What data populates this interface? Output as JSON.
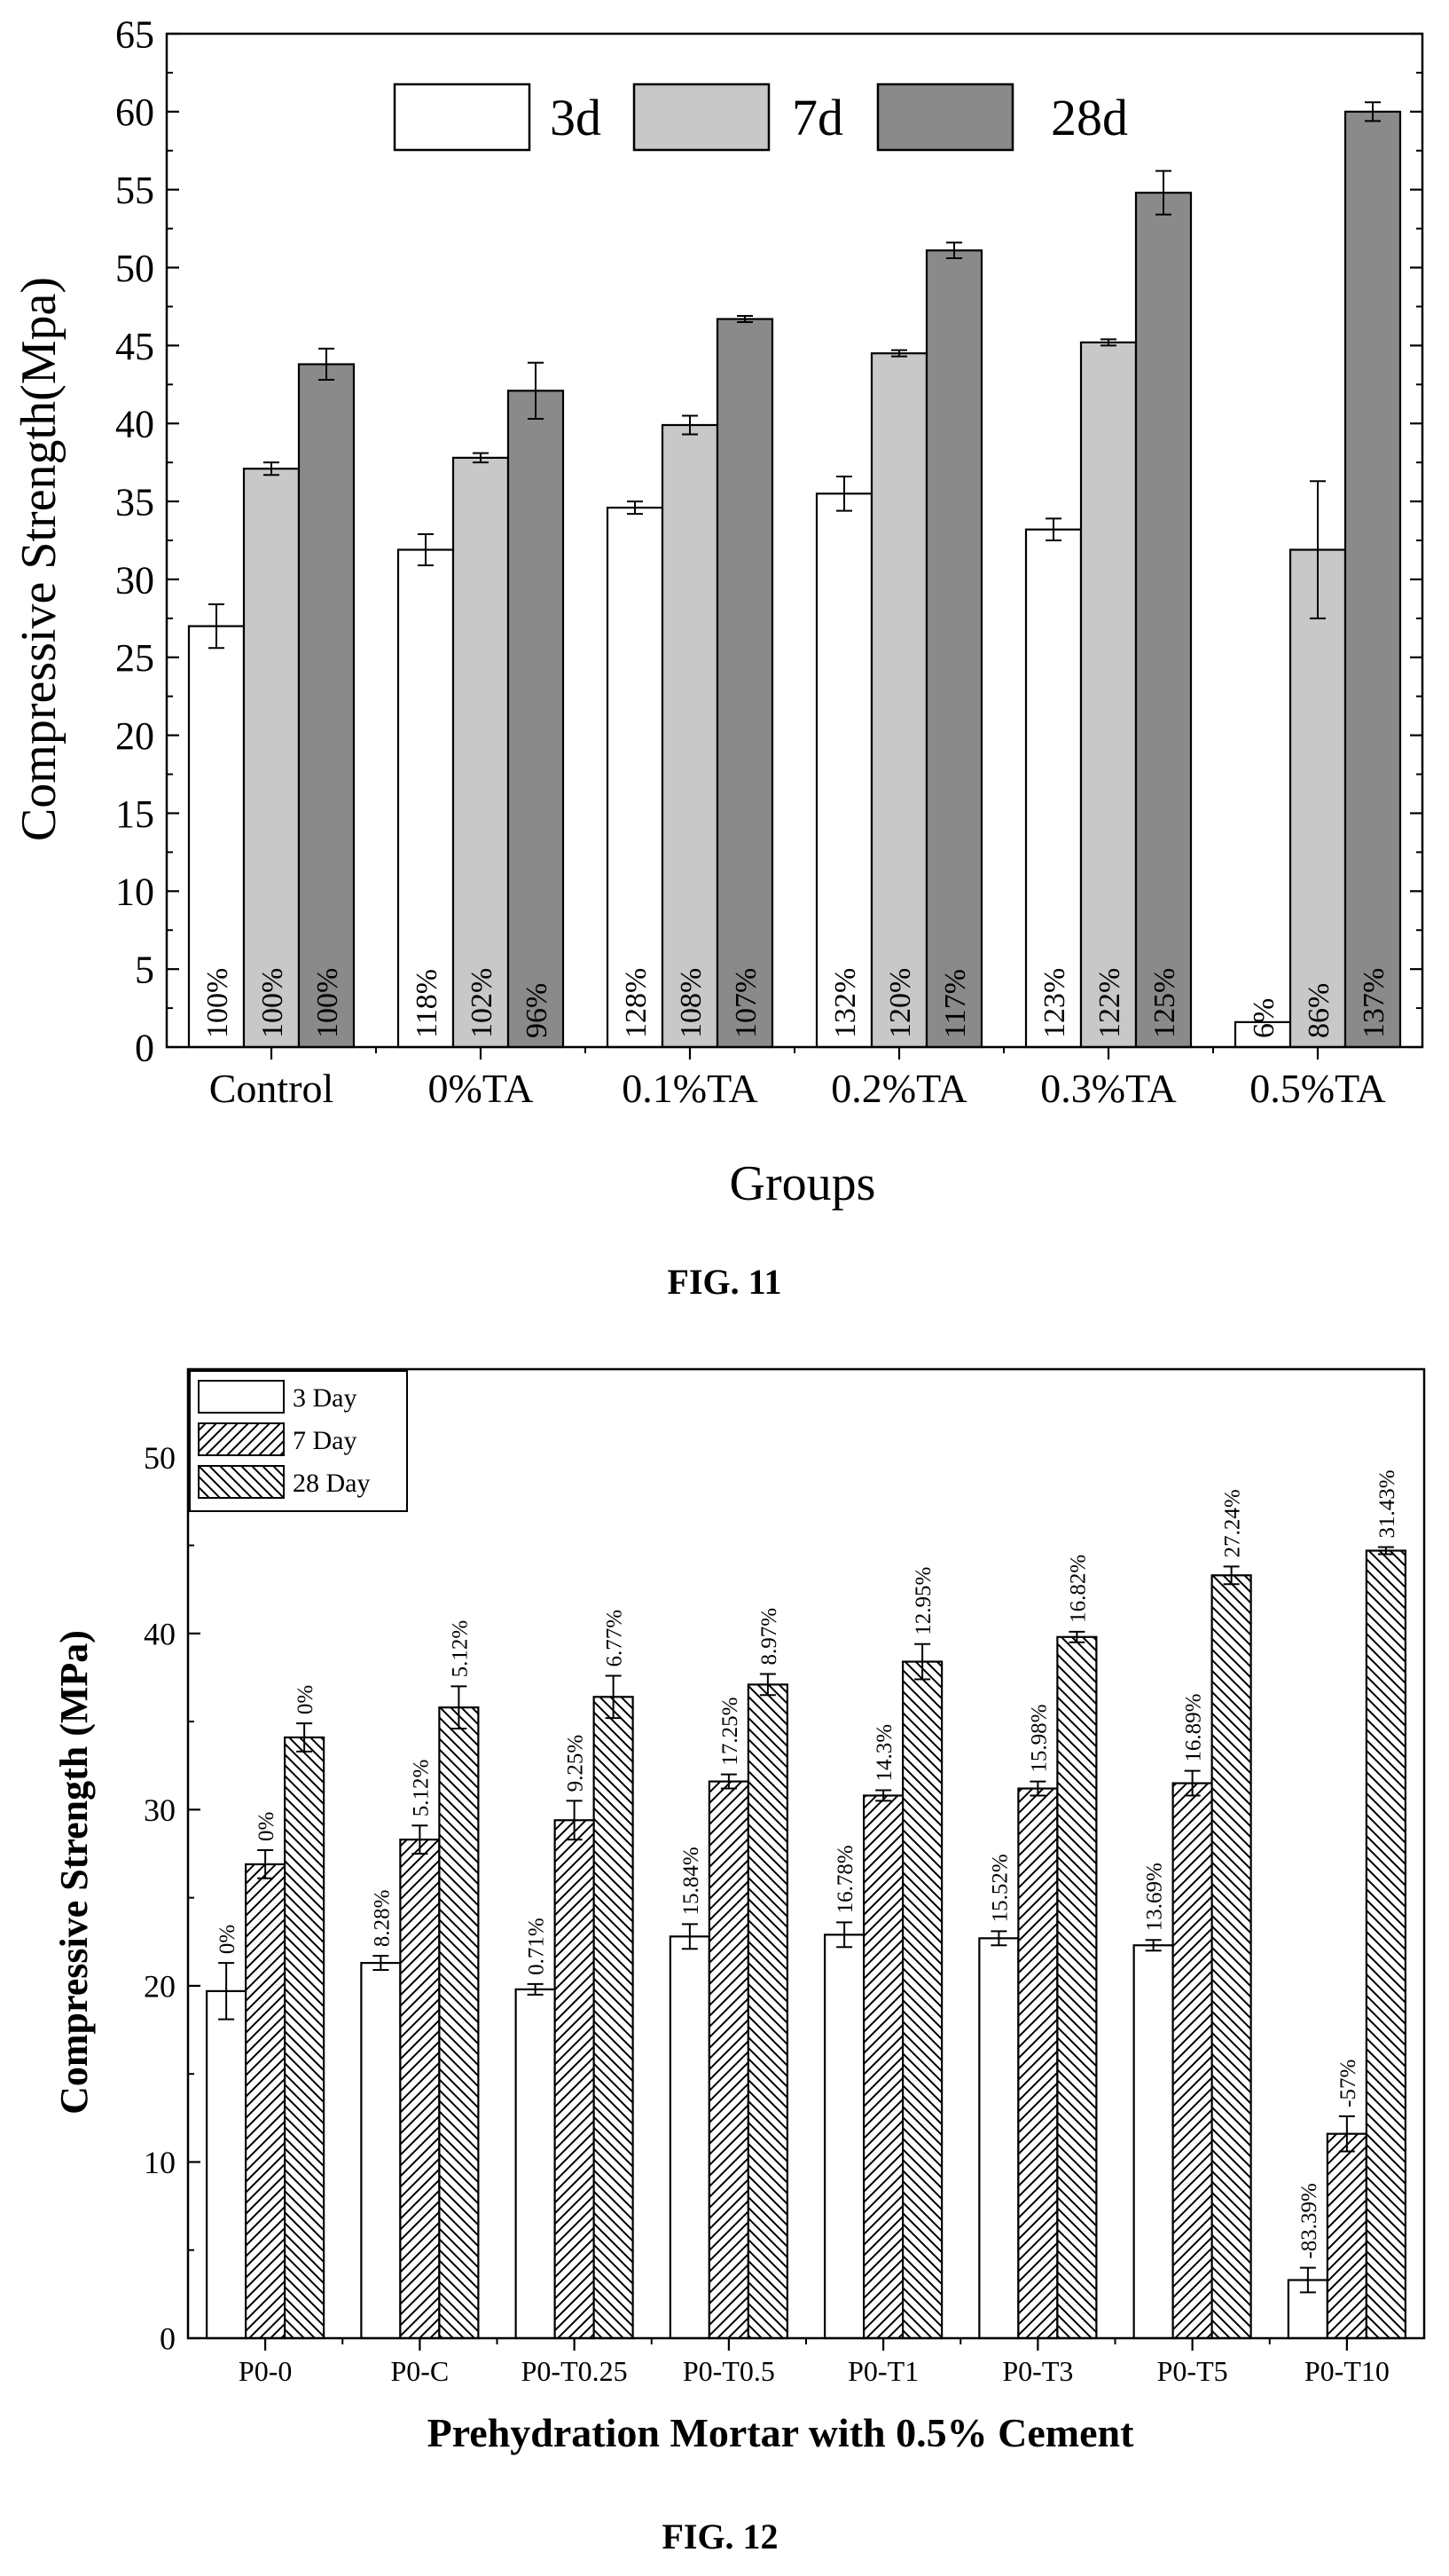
{
  "chart_data": [
    {
      "type": "bar",
      "figure_label": "FIG. 11",
      "xlabel": "Groups",
      "ylabel": "Compressive Strength(Mpa)",
      "ylim": [
        0,
        65
      ],
      "yticks": [
        0,
        5,
        10,
        15,
        20,
        25,
        30,
        35,
        40,
        45,
        50,
        55,
        60,
        65
      ],
      "grid": false,
      "legend": "top-center",
      "categories": [
        "Control",
        "0%TA",
        "0.1%TA",
        "0.2%TA",
        "0.3%TA",
        "0.5%TA"
      ],
      "series": [
        {
          "name": "3d",
          "color": "#ffffff",
          "values": [
            27.0,
            31.9,
            34.6,
            35.5,
            33.2,
            1.6
          ],
          "errors": [
            1.4,
            1.0,
            0.4,
            1.1,
            0.7,
            0.0
          ],
          "labels": [
            "100%",
            "118%",
            "128%",
            "132%",
            "123%",
            "6%"
          ]
        },
        {
          "name": "7d",
          "color": "#c8c8c8",
          "values": [
            37.1,
            37.8,
            39.9,
            44.5,
            45.2,
            31.9
          ],
          "errors": [
            0.4,
            0.3,
            0.6,
            0.2,
            0.2,
            4.4
          ],
          "labels": [
            "100%",
            "102%",
            "108%",
            "120%",
            "122%",
            "86%"
          ]
        },
        {
          "name": "28d",
          "color": "#8a8a8a",
          "values": [
            43.8,
            42.1,
            46.7,
            51.1,
            54.8,
            60.0
          ],
          "errors": [
            1.0,
            1.8,
            0.2,
            0.5,
            1.4,
            0.6
          ],
          "labels": [
            "100%",
            "96%",
            "107%",
            "117%",
            "125%",
            "137%"
          ]
        }
      ]
    },
    {
      "type": "bar",
      "figure_label": "FIG. 12",
      "xlabel": "Prehydration Mortar with 0.5% Cement",
      "ylabel": "Compressive Strength (MPa)",
      "ylim": [
        0,
        55
      ],
      "yticks": [
        0,
        10,
        20,
        30,
        40,
        50
      ],
      "grid": false,
      "legend": "top-left",
      "categories": [
        "P0-0",
        "P0-C",
        "P0-T0.25",
        "P0-T0.5",
        "P0-T1",
        "P0-T3",
        "P0-T5",
        "P0-T10"
      ],
      "series": [
        {
          "name": "3 Day",
          "pattern": "none",
          "values": [
            19.7,
            21.3,
            19.8,
            22.8,
            22.9,
            22.7,
            22.3,
            3.3
          ],
          "errors": [
            1.6,
            0.4,
            0.3,
            0.7,
            0.7,
            0.4,
            0.3,
            0.7
          ],
          "labels": [
            "0%",
            "8.28%",
            "0.71%",
            "15.84%",
            "16.78%",
            "15.52%",
            "13.69%",
            "-83.39%"
          ]
        },
        {
          "name": "7 Day",
          "pattern": "diagonal-up",
          "values": [
            26.9,
            28.3,
            29.4,
            31.6,
            30.8,
            31.2,
            31.5,
            11.6
          ],
          "errors": [
            0.8,
            0.8,
            1.1,
            0.4,
            0.3,
            0.4,
            0.7,
            1.0
          ],
          "labels": [
            "0%",
            "5.12%",
            "9.25%",
            "17.25%",
            "14.3%",
            "15.98%",
            "16.89%",
            "-57%"
          ]
        },
        {
          "name": "28 Day",
          "pattern": "diagonal-down",
          "values": [
            34.1,
            35.8,
            36.4,
            37.1,
            38.4,
            39.8,
            43.3,
            44.7
          ],
          "errors": [
            0.8,
            1.2,
            1.2,
            0.6,
            1.0,
            0.3,
            0.5,
            0.2
          ],
          "labels": [
            "0%",
            "5.12%",
            "6.77%",
            "8.97%",
            "12.95%",
            "16.82%",
            "27.24%",
            "31.43%"
          ]
        }
      ]
    }
  ]
}
